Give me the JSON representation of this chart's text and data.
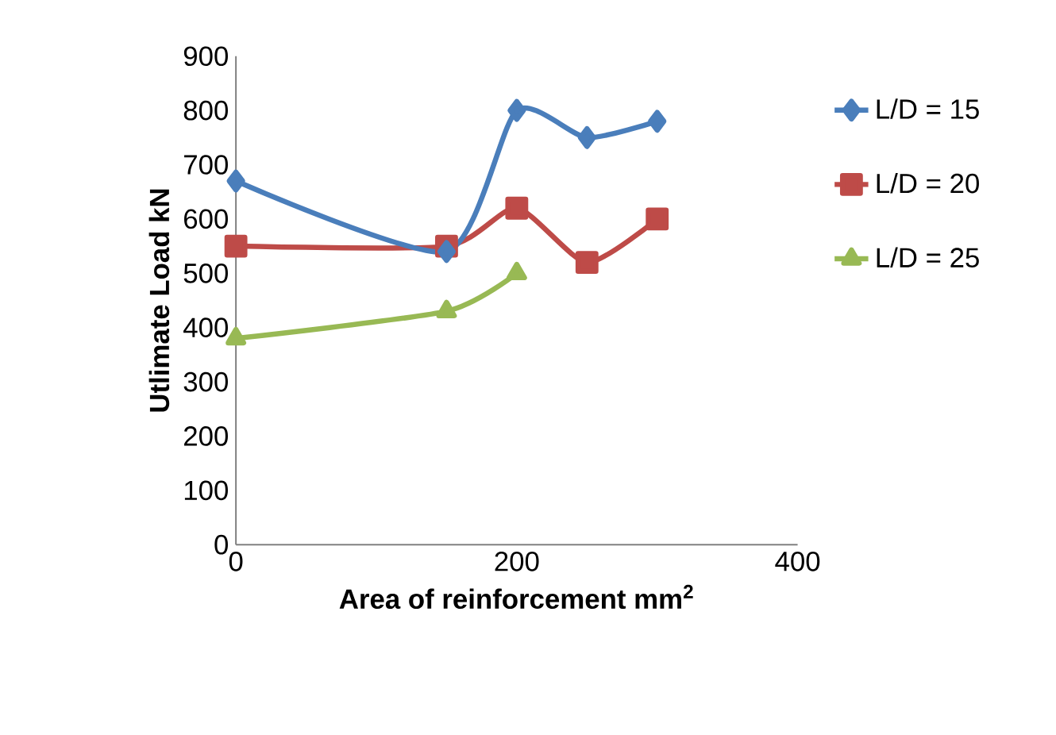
{
  "chart_data": {
    "type": "line",
    "xlabel": "Area of reinforcement mm$^{2}$",
    "ylabel": "Utlimate Load kN",
    "xlim": [
      0,
      400
    ],
    "xticks": [
      0,
      200,
      400
    ],
    "ylim": [
      0,
      900
    ],
    "yticks": [
      0,
      100,
      200,
      300,
      400,
      500,
      600,
      700,
      800,
      900
    ],
    "grid": false,
    "legend": "right",
    "series": [
      {
        "name": "L/D = 15",
        "color": "#4a7ebb",
        "marker": "diamond",
        "x": [
          0,
          150,
          200,
          250,
          300
        ],
        "values": [
          670,
          540,
          800,
          750,
          780
        ]
      },
      {
        "name": "L/D = 20",
        "color": "#be4b48",
        "marker": "square",
        "x": [
          0,
          150,
          200,
          250,
          300
        ],
        "values": [
          550,
          550,
          620,
          520,
          600
        ]
      },
      {
        "name": "L/D = 25",
        "color": "#98b954",
        "marker": "triangle",
        "x": [
          0,
          150,
          200
        ],
        "values": [
          380,
          430,
          500
        ]
      }
    ]
  }
}
